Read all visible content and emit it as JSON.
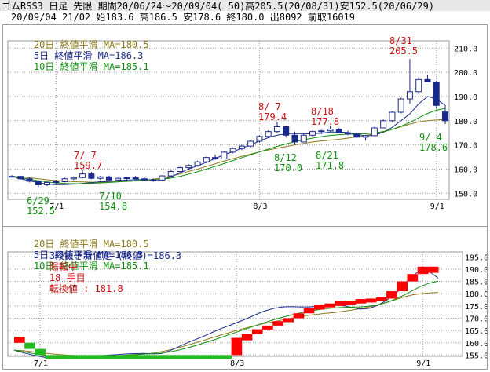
{
  "header": {
    "line1": "ゴムRSS3 日足 先限 期間20/06/24～20/09/04( 50)高205.5(20/08/31)安152.5(20/06/29)",
    "line2": "20/09/04 21/02 始183.6 高186.5 安178.6 終180.0 出8092 前取16019"
  },
  "top_legend": {
    "ma20": "20日 終値平滑 MA=180.5",
    "ma5": "5日 終値平滑 MA=186.3",
    "ma10": "10日 終値平滑 MA=185.1"
  },
  "bottom_legend": {
    "ma20": "20日 終値平滑 MA=180.5",
    "ma5": "5日 終値平滑 MA=186.3",
    "ma10": "10日 終値平滑 MA=185.1"
  },
  "bottom_info": {
    "prefix": "3段抜き新値足 (終値)=186.3",
    "status": "陽転中",
    "count": "18 手目",
    "reversal": "転換値 : 181.8"
  },
  "colors": {
    "up": "#ffffff",
    "down": "#1a2a8c",
    "ma5": "#1a2a8c",
    "ma10": "#109010",
    "ma20": "#8c7a1a",
    "high_label": "#cc1010",
    "low_label": "#109010",
    "brick_up": "#ff0000",
    "brick_down": "#22bb22"
  },
  "chart_data": [
    {
      "type": "candlestick",
      "x_ticks": [
        "7/1",
        "8/3",
        "9/1"
      ],
      "y_ticks": [
        150.0,
        160.0,
        170.0,
        180.0,
        190.0,
        200.0,
        210.0
      ],
      "ylim": [
        147.5,
        213
      ],
      "series": [
        {
          "name": "20日 終値平滑",
          "values": [
            157,
            156.8,
            156.4,
            156,
            155.6,
            155.3,
            155,
            154.8,
            154.7,
            154.6,
            154.6,
            154.7,
            154.8,
            154.9,
            155.1,
            155.4,
            155.8,
            156.4,
            157.1,
            158,
            159,
            160,
            161.1,
            162.2,
            163.3,
            164.3,
            165.3,
            166.2,
            167.1,
            167.9,
            168.6,
            169.3,
            170,
            170.6,
            171.2,
            171.6,
            172,
            172.3,
            172.8,
            173.3,
            173.9,
            174.6,
            175.4,
            176.4,
            177.5,
            178.6,
            179.5,
            180,
            180.3,
            180.5
          ]
        },
        {
          "name": "5日 終値平滑",
          "values": [
            157,
            156,
            155.2,
            154.4,
            153.8,
            153.6,
            153.6,
            153.8,
            154.1,
            154.4,
            154.8,
            155,
            155.2,
            155.5,
            155.6,
            155.7,
            155.5,
            155.6,
            156.8,
            158.4,
            160,
            161.4,
            162.8,
            164.4,
            165.9,
            167.2,
            168.6,
            170,
            171.6,
            173,
            174,
            174.6,
            174.7,
            174.6,
            174.6,
            174.8,
            175.3,
            175.3,
            175.1,
            174.4,
            173.7,
            174,
            175.2,
            177.2,
            180,
            182.8,
            187,
            190,
            189,
            186.3
          ]
        },
        {
          "name": "10日 終値平滑",
          "values": [
            157,
            156.4,
            155.8,
            155.2,
            154.7,
            154.3,
            154.1,
            154,
            154,
            154.1,
            154.3,
            154.5,
            154.7,
            155,
            155.2,
            155.4,
            155.6,
            155.8,
            156.3,
            157,
            157.9,
            158.9,
            160,
            161.1,
            162.3,
            163.5,
            164.7,
            165.9,
            167.1,
            168.3,
            169.4,
            170.4,
            171.3,
            172.1,
            172.8,
            173.4,
            173.9,
            174.2,
            174.4,
            174.5,
            174.6,
            174.9,
            175.5,
            176.4,
            177.7,
            179.3,
            181.2,
            183,
            184.3,
            185.1
          ]
        }
      ],
      "annotations": [
        {
          "text": "7/ 7",
          "value": "159.7",
          "kind": "high"
        },
        {
          "text": "8/ 7",
          "value": "179.4",
          "kind": "high"
        },
        {
          "text": "8/18",
          "value": "177.8",
          "kind": "high"
        },
        {
          "text": "8/31",
          "value": "205.5",
          "kind": "high"
        },
        {
          "text": "6/29",
          "value": "152.5",
          "kind": "low"
        },
        {
          "text": "7/10",
          "value": "154.8",
          "kind": "low"
        },
        {
          "text": "8/12",
          "value": "170.0",
          "kind": "low"
        },
        {
          "text": "8/21",
          "value": "171.8",
          "kind": "low"
        },
        {
          "text": "9/ 4",
          "value": "178.6",
          "kind": "low"
        }
      ]
    },
    {
      "type": "bar",
      "subtype": "3-line-break",
      "x_ticks": [
        "7/1",
        "8/3",
        "9/1"
      ],
      "y_ticks": [
        155.0,
        160.0,
        165.0,
        170.0,
        175.0,
        180.0,
        185.0,
        190.0,
        195.0
      ],
      "ylim": [
        154.5,
        197
      ],
      "bricks": [
        {
          "from": 160,
          "to": 162.5,
          "dir": "up"
        },
        {
          "from": 160,
          "to": 157.5,
          "dir": "down"
        },
        {
          "from": 157.5,
          "to": 155.0,
          "dir": "down"
        },
        {
          "from": 155.0,
          "to": 155.0,
          "dir": "down"
        },
        {
          "from": 155.0,
          "to": 155.0,
          "dir": "down"
        },
        {
          "from": 155.0,
          "to": 155.0,
          "dir": "down"
        },
        {
          "from": 155.0,
          "to": 155.0,
          "dir": "down"
        },
        {
          "from": 155.0,
          "to": 155.0,
          "dir": "down"
        },
        {
          "from": 155.0,
          "to": 155.0,
          "dir": "down"
        },
        {
          "from": 155.0,
          "to": 155.0,
          "dir": "down"
        },
        {
          "from": 155.0,
          "to": 155.0,
          "dir": "down"
        },
        {
          "from": 155.0,
          "to": 155.0,
          "dir": "down"
        },
        {
          "from": 155.0,
          "to": 155.0,
          "dir": "down"
        },
        {
          "from": 155.0,
          "to": 155.0,
          "dir": "down"
        },
        {
          "from": 155.0,
          "to": 155.0,
          "dir": "down"
        },
        {
          "from": 155.0,
          "to": 155.0,
          "dir": "down"
        },
        {
          "from": 155.0,
          "to": 155.0,
          "dir": "down"
        },
        {
          "from": 155.0,
          "to": 155.0,
          "dir": "down"
        },
        {
          "from": 155.0,
          "to": 155.0,
          "dir": "down"
        },
        {
          "from": 155.0,
          "to": 155.0,
          "dir": "down"
        },
        {
          "from": 155.0,
          "to": 155.0,
          "dir": "down"
        },
        {
          "from": 155,
          "to": 162,
          "dir": "up"
        },
        {
          "from": 161,
          "to": 163.5,
          "dir": "up"
        },
        {
          "from": 163.5,
          "to": 165.5,
          "dir": "up"
        },
        {
          "from": 165.5,
          "to": 167.0,
          "dir": "up"
        },
        {
          "from": 167.0,
          "to": 168.8,
          "dir": "up"
        },
        {
          "from": 168.8,
          "to": 170.0,
          "dir": "up"
        },
        {
          "from": 170.0,
          "to": 172.0,
          "dir": "up"
        },
        {
          "from": 172.0,
          "to": 174.0,
          "dir": "up"
        },
        {
          "from": 173.5,
          "to": 175.5,
          "dir": "up"
        },
        {
          "from": 174.5,
          "to": 176.0,
          "dir": "up"
        },
        {
          "from": 175.0,
          "to": 177.0,
          "dir": "up"
        },
        {
          "from": 175.8,
          "to": 177.2,
          "dir": "up"
        },
        {
          "from": 176.0,
          "to": 177.8,
          "dir": "up"
        },
        {
          "from": 176.5,
          "to": 178.0,
          "dir": "up"
        },
        {
          "from": 177.0,
          "to": 178.5,
          "dir": "up"
        },
        {
          "from": 178.0,
          "to": 181.0,
          "dir": "up"
        },
        {
          "from": 181.0,
          "to": 185.0,
          "dir": "up"
        },
        {
          "from": 185.0,
          "to": 188.0,
          "dir": "up"
        },
        {
          "from": 188.0,
          "to": 191.0,
          "dir": "up"
        },
        {
          "from": 188.5,
          "to": 191.0,
          "dir": "up"
        }
      ],
      "series": [
        {
          "name": "20日 終値平滑",
          "values": [
            157,
            156.8,
            156.4,
            156,
            155.6,
            155.3,
            155,
            154.8,
            154.7,
            154.6,
            154.6,
            154.7,
            154.8,
            154.9,
            155.1,
            155.4,
            155.8,
            156.4,
            157.1,
            158,
            159,
            160,
            161.1,
            162.2,
            163.3,
            164.3,
            165.3,
            166.2,
            167.1,
            167.9,
            168.6,
            169.3,
            170,
            170.6,
            171.2,
            171.6,
            172,
            172.3,
            172.8,
            173.3,
            173.9,
            174.6,
            175.4,
            176.4,
            177.5,
            178.6,
            179.5,
            180,
            180.3,
            180.5
          ]
        },
        {
          "name": "5日 終値平滑",
          "values": [
            157,
            156,
            155.2,
            154.4,
            153.8,
            153.6,
            153.6,
            153.8,
            154.1,
            154.4,
            154.8,
            155,
            155.2,
            155.5,
            155.6,
            155.7,
            155.5,
            155.6,
            156.8,
            158.4,
            160,
            161.4,
            162.8,
            164.4,
            165.9,
            167.2,
            168.6,
            170,
            171.6,
            173,
            174,
            174.6,
            174.7,
            174.6,
            174.6,
            174.8,
            175.3,
            175.3,
            175.1,
            174.4,
            173.7,
            174,
            175.2,
            177.2,
            180,
            182.8,
            187,
            190,
            189,
            186.3
          ]
        },
        {
          "name": "10日 終値平滑",
          "values": [
            157,
            156.4,
            155.8,
            155.2,
            154.7,
            154.3,
            154.1,
            154,
            154,
            154.1,
            154.3,
            154.5,
            154.7,
            155,
            155.2,
            155.4,
            155.6,
            155.8,
            156.3,
            157,
            157.9,
            158.9,
            160,
            161.1,
            162.3,
            163.5,
            164.7,
            165.9,
            167.1,
            168.3,
            169.4,
            170.4,
            171.3,
            172.1,
            172.8,
            173.4,
            173.9,
            174.2,
            174.4,
            174.5,
            174.6,
            174.9,
            175.5,
            176.4,
            177.7,
            179.3,
            181.2,
            183,
            184.3,
            185.1
          ]
        }
      ]
    }
  ],
  "candles": [
    [
      157,
      157.5,
      156.5,
      157.0
    ],
    [
      157,
      157.3,
      155.8,
      156.0
    ],
    [
      156,
      156.5,
      154.5,
      155.0
    ],
    [
      155,
      155.5,
      152.5,
      153.5
    ],
    [
      153.5,
      154.8,
      153,
      154.5
    ],
    [
      154.5,
      155.5,
      153.8,
      154.8
    ],
    [
      154.8,
      156.5,
      154.5,
      156.0
    ],
    [
      156,
      157,
      155.5,
      156.5
    ],
    [
      156.5,
      159.7,
      156.2,
      158.0
    ],
    [
      158,
      158.8,
      155.8,
      156.2
    ],
    [
      156.2,
      157.2,
      155.6,
      156.8
    ],
    [
      156.8,
      157.3,
      155.2,
      155.5
    ],
    [
      155.5,
      156.5,
      155,
      156.2
    ],
    [
      156.2,
      156.8,
      155.4,
      156.4
    ],
    [
      156.4,
      157.2,
      155.8,
      156.0
    ],
    [
      156,
      156.5,
      155,
      155.6
    ],
    [
      155.6,
      156.2,
      154.8,
      155.5
    ],
    [
      155.5,
      157.5,
      155.2,
      157.2
    ],
    [
      157.2,
      159.5,
      157,
      159.0
    ],
    [
      159,
      161.0,
      158.5,
      160.6
    ],
    [
      160.6,
      162,
      159.8,
      161.5
    ],
    [
      161.5,
      163.5,
      161,
      163.0
    ],
    [
      163,
      165.2,
      162.5,
      164.8
    ],
    [
      164.8,
      166,
      163.8,
      164.2
    ],
    [
      164.2,
      167.5,
      164,
      167.0
    ],
    [
      167,
      169,
      166.5,
      168.5
    ],
    [
      168.5,
      170,
      167.8,
      169.5
    ],
    [
      169.5,
      172,
      169,
      171.5
    ],
    [
      171.5,
      174,
      171,
      173.5
    ],
    [
      173.5,
      176,
      173,
      175.5
    ],
    [
      175.5,
      179.4,
      175,
      177.5
    ],
    [
      177.5,
      178,
      173,
      174.0
    ],
    [
      174,
      175.5,
      170.0,
      171.2
    ],
    [
      171.2,
      174.5,
      171,
      174.0
    ],
    [
      174,
      176,
      173.5,
      175.5
    ],
    [
      175.5,
      176.2,
      174.5,
      175.8
    ],
    [
      175.8,
      177.8,
      175.5,
      176.5
    ],
    [
      176.5,
      177,
      174.8,
      175.0
    ],
    [
      175,
      175.8,
      174,
      174.5
    ],
    [
      174.5,
      175.2,
      172.8,
      173.2
    ],
    [
      173.2,
      174.2,
      171.8,
      173.8
    ],
    [
      173.8,
      177.5,
      173.5,
      177.0
    ],
    [
      177,
      180.5,
      176.8,
      180.0
    ],
    [
      180,
      184,
      179.5,
      183.5
    ],
    [
      183.5,
      189.5,
      183,
      189.0
    ],
    [
      189,
      205.5,
      187,
      192.0
    ],
    [
      192,
      198,
      191,
      197.0
    ],
    [
      197,
      199,
      196,
      196.0
    ],
    [
      196,
      196.5,
      185,
      186.3
    ],
    [
      183.6,
      186.5,
      178.6,
      180.0
    ]
  ]
}
